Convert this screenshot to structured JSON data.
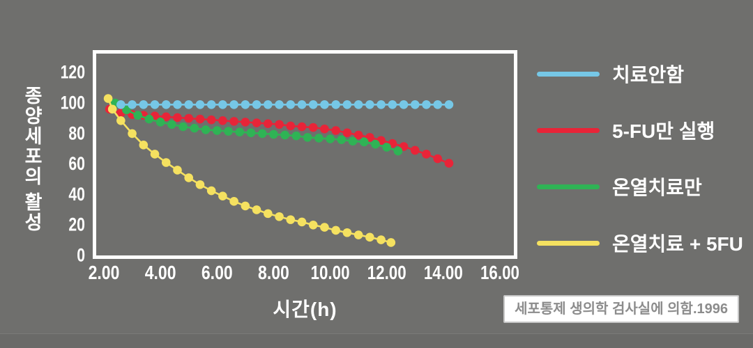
{
  "figure": {
    "background_color": "#6f6f6d",
    "frame_color": "#ffffff",
    "text_color": "#ffffff"
  },
  "chart_data": {
    "type": "line",
    "title": "",
    "xlabel": "시간(h)",
    "ylabel": "종양세포의 활성",
    "x_tick_labels": [
      "2.00",
      "4.00",
      "6.00",
      "8.00",
      "10.00",
      "12.00",
      "14.00",
      "16.00"
    ],
    "x_tick_values": [
      2,
      4,
      6,
      8,
      10,
      12,
      14,
      16
    ],
    "y_tick_values": [
      0,
      20,
      40,
      60,
      80,
      100,
      120
    ],
    "xlim": [
      1.6,
      16.6
    ],
    "ylim": [
      0,
      130
    ],
    "grid": false,
    "marker": "circle",
    "legend_position": "right-outside",
    "draw_order": [
      1,
      2,
      0,
      3
    ],
    "series": [
      {
        "name": "치료안함",
        "color": "#76c7e6",
        "x": [
          2.6,
          3.0,
          3.4,
          3.8,
          4.2,
          4.6,
          5.0,
          5.4,
          5.8,
          6.2,
          6.6,
          7.0,
          7.4,
          7.8,
          8.2,
          8.6,
          9.0,
          9.4,
          9.8,
          10.2,
          10.6,
          11.0,
          11.4,
          11.8,
          12.2,
          12.6,
          13.0,
          13.4,
          13.8,
          14.2
        ],
        "values": [
          98.5,
          98.5,
          98.5,
          98.5,
          98.5,
          98.5,
          98.5,
          98.5,
          98.5,
          98.5,
          98.5,
          98.5,
          98.5,
          98.5,
          98.5,
          98.5,
          98.5,
          98.5,
          98.5,
          98.5,
          98.5,
          98.5,
          98.5,
          98.5,
          98.5,
          98.5,
          98.5,
          98.5,
          98.5,
          98.5
        ]
      },
      {
        "name": "5-FU만 실행",
        "color": "#e82438",
        "x": [
          2.2,
          2.6,
          3.0,
          3.4,
          3.8,
          4.2,
          4.6,
          5.0,
          5.4,
          5.8,
          6.2,
          6.6,
          7.0,
          7.4,
          7.8,
          8.2,
          8.6,
          9.0,
          9.4,
          9.8,
          10.2,
          10.6,
          11.0,
          11.4,
          11.8,
          12.2,
          12.6,
          13.0,
          13.4,
          13.8,
          14.2
        ],
        "values": [
          95.5,
          93,
          92,
          91.5,
          91,
          90.5,
          90,
          89.5,
          89,
          88.5,
          88,
          87.5,
          87,
          86.5,
          86,
          85.5,
          84.5,
          84,
          83.5,
          82.5,
          81.5,
          80,
          78.5,
          77,
          75,
          73,
          71,
          68.5,
          66,
          63,
          60
        ]
      },
      {
        "name": "온열치료만",
        "color": "#2fb355",
        "x": [
          2.4,
          2.8,
          3.2,
          3.6,
          4.0,
          4.4,
          4.8,
          5.2,
          5.6,
          6.0,
          6.4,
          6.8,
          7.2,
          7.6,
          8.0,
          8.4,
          8.8,
          9.2,
          9.6,
          10.0,
          10.4,
          10.8,
          11.2,
          11.6,
          12.0,
          12.4
        ],
        "values": [
          99.5,
          95,
          91.5,
          89,
          87,
          85.5,
          84,
          83,
          82,
          81.5,
          81,
          80.5,
          80,
          79.5,
          79,
          78.5,
          78,
          77,
          76.5,
          76,
          75.5,
          74.5,
          74,
          72.5,
          70.5,
          68
        ]
      },
      {
        "name": "온열치료 + 5FU",
        "color": "#f5e160",
        "x": [
          2.15,
          2.3,
          2.6,
          3.0,
          3.4,
          3.8,
          4.2,
          4.6,
          5.0,
          5.4,
          5.8,
          6.2,
          6.6,
          7.0,
          7.4,
          7.8,
          8.2,
          8.6,
          9.0,
          9.4,
          9.8,
          10.2,
          10.6,
          11.0,
          11.4,
          11.8,
          12.15
        ],
        "values": [
          102.5,
          95.5,
          88,
          79.5,
          72,
          66,
          60.5,
          55.5,
          50.5,
          46,
          42,
          38.5,
          35,
          32,
          29.5,
          27,
          25,
          23,
          21.5,
          19.5,
          18,
          16,
          14.5,
          13,
          11.5,
          9.8,
          8
        ]
      }
    ]
  },
  "legend": {
    "items": [
      {
        "label": "치료안함"
      },
      {
        "label": "5-FU만 실행"
      },
      {
        "label": "온열치료만"
      },
      {
        "label": "온열치료 + 5FU"
      }
    ]
  },
  "citation": {
    "text": "세포통제 생의학 검사실에 의함.1996"
  }
}
